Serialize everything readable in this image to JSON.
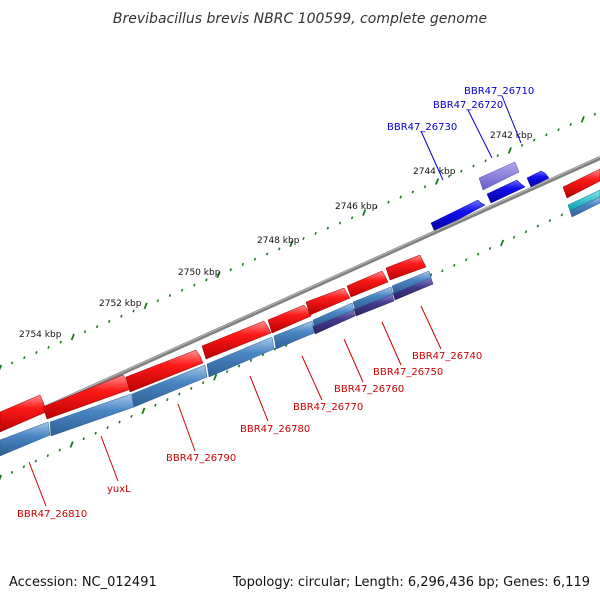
{
  "title": "Brevibacillus brevis NBRC 100599, complete genome",
  "accession_label": "Accession: NC_012491",
  "summary_label": "Topology: circular; Length: 6,296,436 bp; Genes: 6,119",
  "kbp_labels": [
    "2742 kbp",
    "2744 kbp",
    "2746 kbp",
    "2748 kbp",
    "2750 kbp",
    "2752 kbp",
    "2754 kbp"
  ],
  "gene_labels_red": [
    "BBR47_26740",
    "BBR47_26750",
    "BBR47_26760",
    "BBR47_26770",
    "BBR47_26780",
    "BBR47_26790",
    "yuxL",
    "BBR47_26810"
  ],
  "gene_labels_blue": [
    "BBR47_26710",
    "BBR47_26720",
    "BBR47_26730"
  ],
  "colors": {
    "gene_red": "#ee1111",
    "gene_blue": "#1111dd",
    "cds_steel": "#4a86c4",
    "cds_purple": "#443b8c",
    "backbone": "#808080",
    "tick_green": "#1a7a1a",
    "label_red": "#cc0000",
    "label_blue": "#0000cc",
    "cyan": "#00b8c8"
  }
}
